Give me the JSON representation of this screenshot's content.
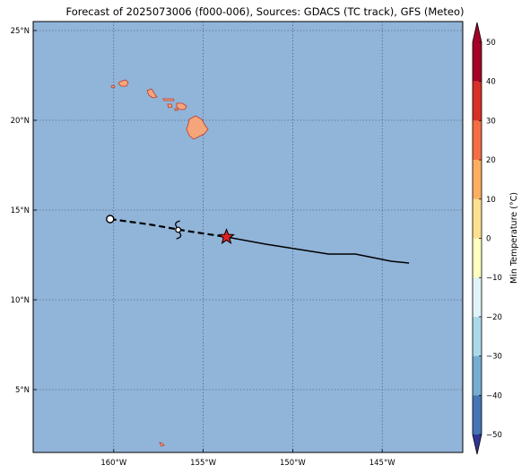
{
  "title": "Forecast of 2025073006 (f000-006), Sources: GDACS (TC track), GFS (Meteo)",
  "colors": {
    "ocean": "#91b4d9",
    "grid": "#3a4b6e",
    "land_fill": "#f4a57a",
    "land_edge": "#c0392b",
    "current_marker": "#e02020"
  },
  "map": {
    "lon_range": [
      -164.5,
      -140.5
    ],
    "lat_range": [
      1.5,
      25.5
    ],
    "lon_ticks": [
      {
        "value": -160,
        "label": "160°W"
      },
      {
        "value": -155,
        "label": "155°W"
      },
      {
        "value": -150,
        "label": "150°W"
      },
      {
        "value": -145,
        "label": "145°W"
      }
    ],
    "lat_ticks": [
      {
        "value": 5,
        "label": "5°N"
      },
      {
        "value": 10,
        "label": "10°N"
      },
      {
        "value": 15,
        "label": "15°N"
      },
      {
        "value": 20,
        "label": "20°N"
      },
      {
        "value": 25,
        "label": "25°N"
      }
    ],
    "grid": true
  },
  "track": {
    "past": [
      [
        -160.2,
        14.5
      ],
      [
        -158.0,
        14.2
      ],
      [
        -156.0,
        13.85
      ],
      [
        -153.7,
        13.5
      ]
    ],
    "forecast": [
      [
        -153.7,
        13.5
      ],
      [
        -151.5,
        13.1
      ],
      [
        -148.0,
        12.55
      ],
      [
        -146.5,
        12.55
      ],
      [
        -144.5,
        12.15
      ],
      [
        -143.5,
        12.05
      ]
    ],
    "start_point": [
      -160.2,
      14.5
    ],
    "storm_symbol": [
      -156.4,
      13.9
    ],
    "current_position": [
      -153.7,
      13.5
    ]
  },
  "colorbar": {
    "label": "Min Temperature (°C)",
    "range": [
      -55,
      55
    ],
    "ticks": [
      {
        "value": 50,
        "label": "50"
      },
      {
        "value": 40,
        "label": "40"
      },
      {
        "value": 30,
        "label": "30"
      },
      {
        "value": 20,
        "label": "20"
      },
      {
        "value": 10,
        "label": "10"
      },
      {
        "value": 0,
        "label": "0"
      },
      {
        "value": -10,
        "label": "−10"
      },
      {
        "value": -20,
        "label": "−20"
      },
      {
        "value": -30,
        "label": "−30"
      },
      {
        "value": -40,
        "label": "−40"
      },
      {
        "value": -50,
        "label": "−50"
      }
    ],
    "bands": [
      {
        "from": 50,
        "to": 55,
        "color": "#a50026"
      },
      {
        "from": 40,
        "to": 50,
        "color": "#a50026"
      },
      {
        "from": 30,
        "to": 40,
        "color": "#d73027"
      },
      {
        "from": 20,
        "to": 30,
        "color": "#f46d43"
      },
      {
        "from": 10,
        "to": 20,
        "color": "#fdae61"
      },
      {
        "from": 0,
        "to": 10,
        "color": "#fee090"
      },
      {
        "from": -10,
        "to": 0,
        "color": "#ffffbf"
      },
      {
        "from": -20,
        "to": -10,
        "color": "#e0f3f8"
      },
      {
        "from": -30,
        "to": -20,
        "color": "#abd9e9"
      },
      {
        "from": -40,
        "to": -30,
        "color": "#74add1"
      },
      {
        "from": -50,
        "to": -40,
        "color": "#4575b4"
      },
      {
        "from": -55,
        "to": -50,
        "color": "#313695"
      }
    ]
  }
}
